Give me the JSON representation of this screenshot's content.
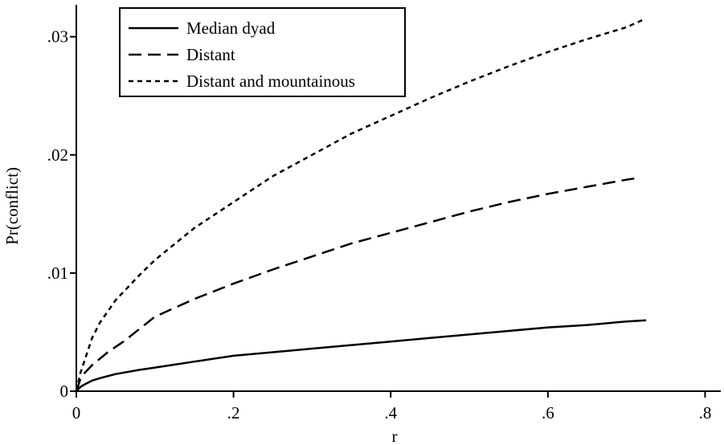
{
  "chart_data": {
    "type": "line",
    "title": "",
    "xlabel": "r",
    "ylabel": "Pr(conflict)",
    "xlim": [
      0,
      0.82
    ],
    "ylim": [
      0,
      0.0327
    ],
    "grid": false,
    "legend_position": "top-left",
    "xticks": [
      {
        "value": 0,
        "label": "0"
      },
      {
        "value": 0.2,
        "label": ".2"
      },
      {
        "value": 0.4,
        "label": ".4"
      },
      {
        "value": 0.6,
        "label": ".6"
      },
      {
        "value": 0.8,
        "label": ".8"
      }
    ],
    "yticks": [
      {
        "value": 0,
        "label": "0"
      },
      {
        "value": 0.01,
        "label": ".01"
      },
      {
        "value": 0.02,
        "label": ".02"
      },
      {
        "value": 0.03,
        "label": ".03"
      }
    ],
    "series": [
      {
        "name": "Median dyad",
        "dash": "solid",
        "color": "#000000",
        "x": [
          0,
          0.005,
          0.01,
          0.02,
          0.03,
          0.05,
          0.08,
          0.1,
          0.15,
          0.2,
          0.25,
          0.3,
          0.35,
          0.4,
          0.45,
          0.5,
          0.55,
          0.6,
          0.65,
          0.7,
          0.725
        ],
        "y": [
          0,
          0.00035,
          0.00055,
          0.0009,
          0.0011,
          0.00145,
          0.0018,
          0.002,
          0.0025,
          0.003,
          0.0033,
          0.0036,
          0.0039,
          0.0042,
          0.0045,
          0.0048,
          0.0051,
          0.0054,
          0.0056,
          0.0059,
          0.006
        ]
      },
      {
        "name": "Distant",
        "dash": "dashed",
        "color": "#000000",
        "x": [
          0,
          0.005,
          0.01,
          0.02,
          0.04,
          0.06,
          0.1,
          0.15,
          0.2,
          0.25,
          0.3,
          0.35,
          0.4,
          0.45,
          0.5,
          0.55,
          0.6,
          0.65,
          0.7,
          0.71
        ],
        "y": [
          0,
          0.001,
          0.0015,
          0.0022,
          0.0033,
          0.0042,
          0.0063,
          0.0078,
          0.0091,
          0.0103,
          0.0114,
          0.0125,
          0.0134,
          0.0143,
          0.0152,
          0.016,
          0.0167,
          0.0173,
          0.0179,
          0.018
        ]
      },
      {
        "name": "Distant and mountainous",
        "dash": "dotted",
        "color": "#000000",
        "x": [
          0,
          0.005,
          0.01,
          0.02,
          0.03,
          0.05,
          0.08,
          0.1,
          0.15,
          0.2,
          0.25,
          0.3,
          0.35,
          0.4,
          0.45,
          0.5,
          0.55,
          0.6,
          0.65,
          0.7,
          0.72
        ],
        "y": [
          0,
          0.0015,
          0.0025,
          0.0045,
          0.0058,
          0.0077,
          0.0098,
          0.0111,
          0.0138,
          0.016,
          0.0182,
          0.02,
          0.0218,
          0.0233,
          0.0248,
          0.0262,
          0.0275,
          0.0287,
          0.0298,
          0.0308,
          0.0314
        ]
      }
    ]
  }
}
